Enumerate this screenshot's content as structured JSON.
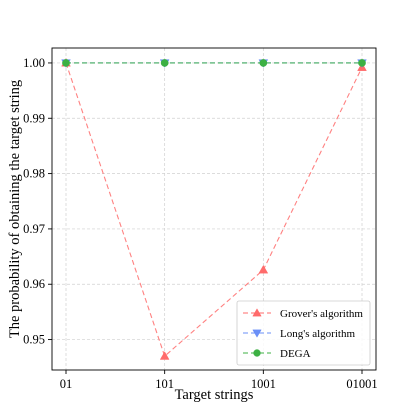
{
  "chart_data": {
    "type": "line",
    "title": "",
    "xlabel": "Target strings",
    "ylabel": "The probability of obtaining the target string",
    "categories": [
      "01",
      "101",
      "1001",
      "01001"
    ],
    "ylim": [
      0.9445,
      1.0027
    ],
    "yticks": [
      0.95,
      0.96,
      0.97,
      0.98,
      0.99,
      1.0
    ],
    "ytick_labels": [
      "0.95",
      "0.96",
      "0.97",
      "0.98",
      "0.99",
      "1.00"
    ],
    "grid": true,
    "legend_position": "lower-right",
    "series": [
      {
        "name": "Grover's algorithm",
        "values": [
          1.0,
          0.947,
          0.9626,
          0.9992
        ],
        "color": "#ff6b6b",
        "marker": "triangle-up",
        "linestyle": "dashed"
      },
      {
        "name": "Long's algorithm",
        "values": [
          1.0,
          1.0,
          1.0,
          1.0
        ],
        "color": "#6a8ff7",
        "marker": "triangle-down",
        "linestyle": "dashed"
      },
      {
        "name": "DEGA",
        "values": [
          1.0,
          1.0,
          1.0,
          1.0
        ],
        "color": "#3cb043",
        "marker": "circle",
        "linestyle": "dashed"
      }
    ]
  }
}
